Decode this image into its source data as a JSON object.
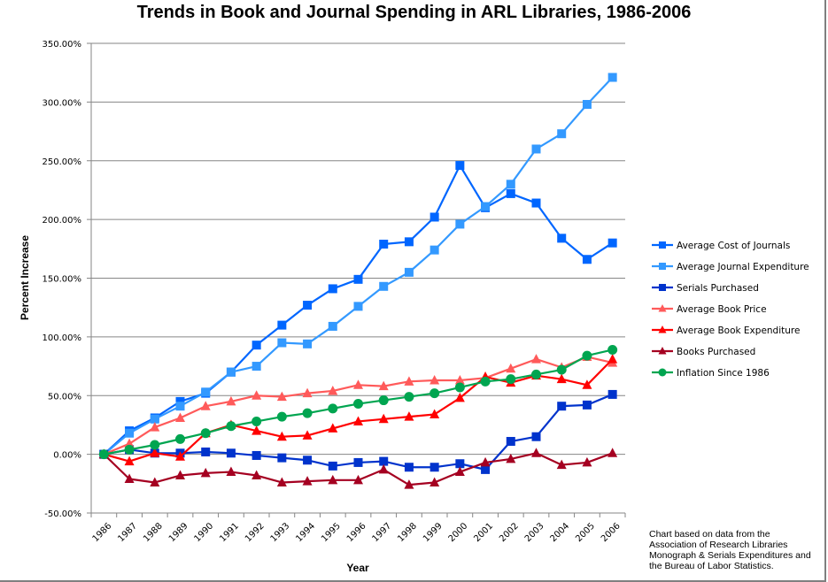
{
  "chart_data": {
    "type": "line",
    "title": "Trends in Book and Journal Spending in ARL Libraries, 1986-2006",
    "xlabel": "Year",
    "ylabel": "Percent Increase",
    "ylim": [
      -50,
      350
    ],
    "yticks": [
      "-50.00%",
      "0.00%",
      "50.00%",
      "100.00%",
      "150.00%",
      "200.00%",
      "250.00%",
      "300.00%",
      "350.00%"
    ],
    "ytick_values": [
      -50,
      0,
      50,
      100,
      150,
      200,
      250,
      300,
      350
    ],
    "grid": true,
    "legend_position": "right",
    "x": [
      "1986",
      "1987",
      "1988",
      "1989",
      "1990",
      "1991",
      "1992",
      "1993",
      "1994",
      "1995",
      "1996",
      "1997",
      "1998",
      "1999",
      "2000",
      "2001",
      "2002",
      "2003",
      "2004",
      "2005",
      "2006"
    ],
    "series": [
      {
        "name": "Average Cost of Journals",
        "color": "#0066ff",
        "marker": "square",
        "values": [
          0,
          20,
          31,
          45,
          52,
          70,
          93,
          110,
          127,
          141,
          149,
          179,
          181,
          202,
          246,
          210,
          222,
          214,
          184,
          166,
          180
        ]
      },
      {
        "name": "Average Journal Expenditure",
        "color": "#3399ff",
        "marker": "square",
        "values": [
          0,
          18,
          30,
          41,
          53,
          70,
          75,
          95,
          94,
          109,
          126,
          143,
          155,
          174,
          196,
          211,
          230,
          260,
          273,
          298,
          321
        ]
      },
      {
        "name": "Serials Purchased",
        "color": "#0033cc",
        "marker": "square",
        "values": [
          0,
          4,
          1,
          1,
          2,
          1,
          -1,
          -3,
          -5,
          -10,
          -7,
          -6,
          -11,
          -11,
          -8,
          -13,
          11,
          15,
          41,
          42,
          51
        ]
      },
      {
        "name": "Average Book Price",
        "color": "#ff5a5a",
        "marker": "triangle",
        "values": [
          0,
          9,
          23,
          31,
          41,
          45,
          50,
          49,
          52,
          54,
          59,
          58,
          62,
          63,
          63,
          65,
          73,
          81,
          74,
          83,
          78
        ]
      },
      {
        "name": "Average Book Expenditure",
        "color": "#ff0000",
        "marker": "triangle",
        "values": [
          0,
          -6,
          1,
          -2,
          18,
          25,
          20,
          15,
          16,
          22,
          28,
          30,
          32,
          34,
          48,
          66,
          61,
          67,
          64,
          59,
          81
        ]
      },
      {
        "name": "Books Purchased",
        "color": "#a50021",
        "marker": "triangle",
        "values": [
          0,
          -21,
          -24,
          -18,
          -16,
          -15,
          -18,
          -24,
          -23,
          -22,
          -22,
          -13,
          -26,
          -24,
          -15,
          -7,
          -4,
          1,
          -9,
          -7,
          1
        ]
      },
      {
        "name": "Inflation Since 1986",
        "color": "#00a550",
        "marker": "circle",
        "values": [
          0,
          4,
          8,
          13,
          18,
          24,
          28,
          32,
          35,
          39,
          43,
          46,
          49,
          52,
          57,
          62,
          64,
          68,
          72,
          84,
          89
        ]
      }
    ],
    "annotation": "Chart based on data from the Association of Research Libraries Monograph & Serials Expenditures and the Bureau of Labor Statistics."
  }
}
